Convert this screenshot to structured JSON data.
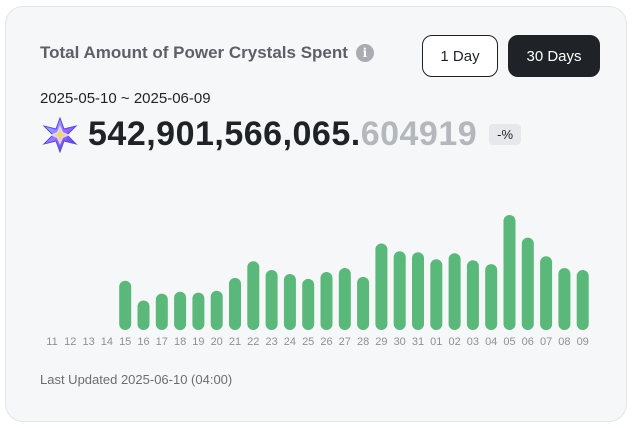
{
  "header": {
    "title": "Total Amount of Power Crystals Spent",
    "info_icon": "i"
  },
  "buttons": {
    "day": "1 Day",
    "days30": "30 Days",
    "selected": "30 Days"
  },
  "date_range": "2025-05-10 ~ 2025-06-09",
  "total": {
    "integer": "542,901,566,065.",
    "decimal": "604919",
    "change": "-%",
    "icon": "power-crystal-icon"
  },
  "footer": {
    "last_updated": "Last Updated 2025-06-10 (04:00)"
  },
  "colors": {
    "bar": "#5bb87b",
    "accent_dark": "#1f2226"
  },
  "chart_data": {
    "type": "bar",
    "categories": [
      "11",
      "12",
      "13",
      "14",
      "15",
      "16",
      "17",
      "18",
      "19",
      "20",
      "21",
      "22",
      "23",
      "24",
      "25",
      "26",
      "27",
      "28",
      "29",
      "30",
      "31",
      "01",
      "02",
      "03",
      "04",
      "05",
      "06",
      "07",
      "08",
      "09"
    ],
    "values": [
      0,
      0,
      0,
      0,
      50,
      30,
      37,
      39,
      38,
      40,
      53,
      70,
      61,
      57,
      52,
      59,
      63,
      54,
      88,
      80,
      79,
      72,
      78,
      71,
      67,
      117,
      94,
      75,
      63,
      61
    ],
    "title": "",
    "xlabel": "",
    "ylabel": "",
    "ylim": [
      0,
      120
    ],
    "grid": false
  }
}
